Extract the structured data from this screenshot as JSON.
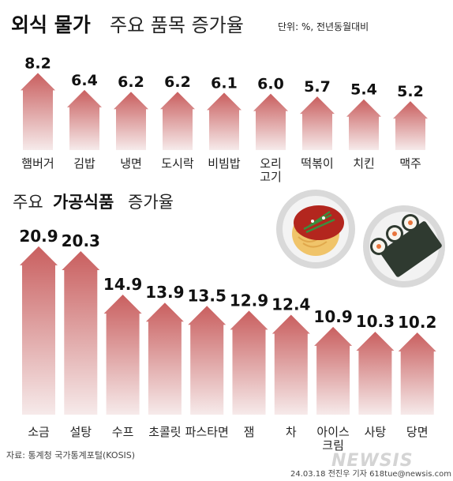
{
  "header": {
    "title_bold": "외식 물가",
    "title_rest": "주요 품목 증가율",
    "unit": "단위: %, 전년동월대비"
  },
  "section2": {
    "prefix": "주요",
    "bold": "가공식품",
    "suffix": "증가율"
  },
  "footer": {
    "source": "자료: 통계청 국가통계포털(KOSIS)",
    "credit": "24.03.18 전진우 기자 618tue@newsis.com",
    "logo": "NEWSIS"
  },
  "colors": {
    "bar_top": "#c95f5f",
    "bar_bottom": "#f6eaea",
    "plate": "#d9d9d9",
    "noodle_sauce": "#b3261e",
    "noodle": "#f0c46a",
    "laver": "#2f3a30"
  },
  "chart_data": [
    {
      "type": "bar",
      "title": "외식 물가 주요 품목 증가율",
      "unit": "%",
      "categories": [
        [
          "햄버거"
        ],
        [
          "김밥"
        ],
        [
          "냉면"
        ],
        [
          "도시락"
        ],
        [
          "비빔밥"
        ],
        [
          "오리",
          "고기"
        ],
        [
          "떡볶이"
        ],
        [
          "치킨"
        ],
        [
          "맥주"
        ]
      ],
      "values": [
        8.2,
        6.4,
        6.2,
        6.2,
        6.1,
        6.0,
        5.7,
        5.4,
        5.2
      ],
      "labels": [
        "8.2",
        "6.4",
        "6.2",
        "6.2",
        "6.1",
        "6.0",
        "5.7",
        "5.4",
        "5.2"
      ]
    },
    {
      "type": "bar",
      "title": "주요 가공식품 증가율",
      "unit": "%",
      "categories": [
        [
          "소금"
        ],
        [
          "설탕"
        ],
        [
          "수프"
        ],
        [
          "초콜릿"
        ],
        [
          "파스타면"
        ],
        [
          "잼"
        ],
        [
          "차"
        ],
        [
          "아이스",
          "크림"
        ],
        [
          "사탕"
        ],
        [
          "당면"
        ]
      ],
      "values": [
        20.9,
        20.3,
        14.9,
        13.9,
        13.5,
        12.9,
        12.4,
        10.9,
        10.3,
        10.2
      ],
      "labels": [
        "20.9",
        "20.3",
        "14.9",
        "13.9",
        "13.5",
        "12.9",
        "12.4",
        "10.9",
        "10.3",
        "10.2"
      ]
    }
  ]
}
